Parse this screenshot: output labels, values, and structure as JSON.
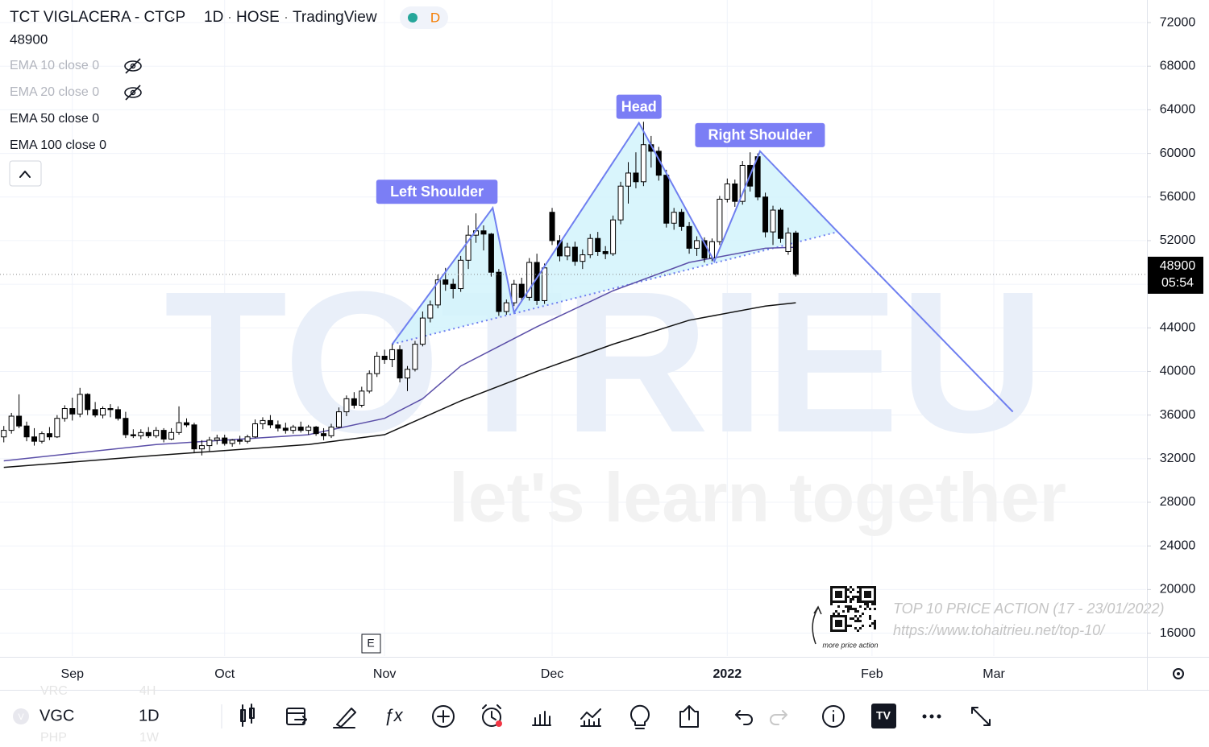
{
  "header": {
    "symbol_name": "TCT VIGLACERA - CTCP",
    "interval": "1D",
    "exchange": "HOSE",
    "source": "TradingView",
    "badge": "D"
  },
  "chart_data": {
    "type": "candlestick",
    "xlim": [
      -0.5,
      150
    ],
    "ylim": [
      13900,
      74070
    ],
    "xticks": [
      {
        "value": 9,
        "label": "Sep"
      },
      {
        "value": 29,
        "label": "Oct"
      },
      {
        "value": 50,
        "label": "Nov"
      },
      {
        "value": 72,
        "label": "Dec"
      },
      {
        "value": 95,
        "label": "2022"
      },
      {
        "value": 114,
        "label": "Feb"
      },
      {
        "value": 130,
        "label": "Mar"
      }
    ],
    "yticks": [
      16000,
      20000,
      24000,
      28000,
      32000,
      36000,
      40000,
      44000,
      48000,
      52000,
      56000,
      60000,
      64000,
      68000,
      72000
    ],
    "grid": true,
    "last_price": 48900,
    "countdown": "05:54",
    "ohlc": [
      [
        34000,
        35000,
        33500,
        34600
      ],
      [
        34600,
        36200,
        34300,
        35900
      ],
      [
        35900,
        37900,
        34800,
        35000
      ],
      [
        35000,
        35400,
        33600,
        34000
      ],
      [
        34000,
        34800,
        33200,
        33600
      ],
      [
        33600,
        34500,
        33400,
        34300
      ],
      [
        34300,
        34900,
        33700,
        34000
      ],
      [
        34000,
        36000,
        33900,
        35700
      ],
      [
        35700,
        36900,
        35400,
        36600
      ],
      [
        36600,
        37600,
        35500,
        36100
      ],
      [
        36100,
        38500,
        35800,
        37900
      ],
      [
        37900,
        38000,
        36000,
        36500
      ],
      [
        36500,
        37200,
        35800,
        36000
      ],
      [
        36000,
        36800,
        35700,
        36600
      ],
      [
        36600,
        37000,
        35800,
        36500
      ],
      [
        36500,
        36800,
        35500,
        35700
      ],
      [
        35700,
        36300,
        33900,
        34200
      ],
      [
        34200,
        34700,
        33900,
        34100
      ],
      [
        34100,
        34700,
        33800,
        34400
      ],
      [
        34400,
        34900,
        33900,
        34100
      ],
      [
        34100,
        34900,
        33900,
        34600
      ],
      [
        34600,
        34800,
        33500,
        33800
      ],
      [
        33800,
        34800,
        33700,
        34400
      ],
      [
        34400,
        36800,
        34200,
        35300
      ],
      [
        35300,
        35700,
        34900,
        35100
      ],
      [
        35100,
        35300,
        32500,
        32900
      ],
      [
        32900,
        33700,
        32300,
        33200
      ],
      [
        33200,
        34000,
        32700,
        33700
      ],
      [
        33700,
        34200,
        33300,
        33900
      ],
      [
        33900,
        34200,
        33200,
        33400
      ],
      [
        33400,
        33800,
        33100,
        33700
      ],
      [
        33700,
        34100,
        33300,
        33600
      ],
      [
        33600,
        34200,
        33400,
        34000
      ],
      [
        34000,
        35600,
        33900,
        35200
      ],
      [
        35200,
        35800,
        34700,
        35500
      ],
      [
        35500,
        36000,
        34800,
        35100
      ],
      [
        35100,
        35500,
        34500,
        34800
      ],
      [
        34800,
        35300,
        34300,
        34600
      ],
      [
        34600,
        35100,
        34300,
        34900
      ],
      [
        34900,
        35400,
        34400,
        34600
      ],
      [
        34600,
        35100,
        34200,
        34900
      ],
      [
        34900,
        35000,
        34100,
        34300
      ],
      [
        34300,
        34800,
        33700,
        34100
      ],
      [
        34100,
        35200,
        33900,
        34900
      ],
      [
        34900,
        36700,
        34800,
        36300
      ],
      [
        36300,
        37800,
        35900,
        37500
      ],
      [
        37500,
        38100,
        36600,
        36900
      ],
      [
        36900,
        38600,
        36700,
        38200
      ],
      [
        38200,
        40100,
        38000,
        39800
      ],
      [
        39800,
        41800,
        39500,
        41400
      ],
      [
        41400,
        42000,
        40700,
        41100
      ],
      [
        41100,
        42600,
        40400,
        42000
      ],
      [
        42000,
        42400,
        39000,
        39400
      ],
      [
        39400,
        40500,
        38200,
        40200
      ],
      [
        40200,
        42800,
        40000,
        42500
      ],
      [
        42500,
        45500,
        42300,
        44900
      ],
      [
        44900,
        46500,
        44500,
        46100
      ],
      [
        46100,
        48900,
        45800,
        48400
      ],
      [
        48400,
        49500,
        47400,
        48000
      ],
      [
        48000,
        48500,
        46700,
        47600
      ],
      [
        47600,
        50600,
        47300,
        50200
      ],
      [
        50200,
        53400,
        49400,
        52500
      ],
      [
        52500,
        54500,
        51800,
        52900
      ],
      [
        52900,
        53400,
        51100,
        52600
      ],
      [
        52600,
        52700,
        48700,
        49100
      ],
      [
        49100,
        49400,
        45100,
        45500
      ],
      [
        45500,
        46600,
        45200,
        46300
      ],
      [
        46300,
        48400,
        46000,
        48000
      ],
      [
        48000,
        48600,
        46400,
        46800
      ],
      [
        46800,
        50400,
        46500,
        50000
      ],
      [
        50000,
        50800,
        46100,
        46500
      ],
      [
        46500,
        49900,
        46200,
        49500
      ],
      [
        54600,
        55000,
        51600,
        52000
      ],
      [
        52000,
        52500,
        50100,
        50600
      ],
      [
        50600,
        51800,
        50200,
        51400
      ],
      [
        51400,
        51900,
        49700,
        50100
      ],
      [
        50100,
        51200,
        49400,
        50700
      ],
      [
        50700,
        52600,
        50400,
        52200
      ],
      [
        52200,
        52800,
        50600,
        51000
      ],
      [
        51000,
        51500,
        50300,
        50800
      ],
      [
        50800,
        54300,
        50600,
        53900
      ],
      [
        53900,
        57400,
        53500,
        57000
      ],
      [
        57000,
        59200,
        55400,
        58200
      ],
      [
        58200,
        60100,
        56800,
        57400
      ],
      [
        57400,
        62900,
        57000,
        60800
      ],
      [
        60800,
        61600,
        58700,
        60200
      ],
      [
        60200,
        60600,
        57500,
        58000
      ],
      [
        58000,
        58500,
        53200,
        53600
      ],
      [
        53600,
        55000,
        53000,
        54600
      ],
      [
        54600,
        54900,
        52900,
        53300
      ],
      [
        53300,
        53700,
        50800,
        51300
      ],
      [
        51300,
        52400,
        50600,
        52000
      ],
      [
        52000,
        52300,
        50000,
        50400
      ],
      [
        50400,
        52200,
        50100,
        51900
      ],
      [
        51900,
        56100,
        51600,
        55800
      ],
      [
        55800,
        57700,
        55500,
        57200
      ],
      [
        57200,
        57600,
        55100,
        55600
      ],
      [
        55600,
        59300,
        55300,
        58900
      ],
      [
        58900,
        60100,
        56500,
        57000
      ],
      [
        59700,
        60000,
        55700,
        56000
      ],
      [
        56000,
        56400,
        52300,
        52800
      ],
      [
        52800,
        55200,
        51600,
        54800
      ],
      [
        54800,
        55000,
        51800,
        52200
      ],
      [
        51000,
        53200,
        50700,
        52700
      ],
      [
        52700,
        52900,
        48700,
        48900
      ]
    ],
    "indicators": [
      {
        "name": "EMA 10 close 0",
        "visible": false
      },
      {
        "name": "EMA 20 close 0",
        "visible": false
      },
      {
        "name": "EMA 50 close 0",
        "visible": true,
        "color": "#5b4fa8",
        "x": [
          0,
          20,
          40,
          50,
          55,
          60,
          70,
          80,
          90,
          100,
          104
        ],
        "values": [
          31800,
          33300,
          34200,
          35700,
          37500,
          40500,
          44100,
          47400,
          50000,
          51300,
          51400
        ]
      },
      {
        "name": "EMA 100 close 0",
        "visible": true,
        "color": "#111111",
        "x": [
          0,
          20,
          40,
          50,
          60,
          70,
          80,
          90,
          100,
          104
        ],
        "values": [
          31200,
          32300,
          33300,
          34200,
          37300,
          40000,
          42500,
          44700,
          46000,
          46300
        ]
      }
    ],
    "pattern": {
      "color": "#6f7ff0",
      "fill": "#d2f3fb",
      "x": [
        51,
        64.2,
        67,
        83.4,
        93.3,
        99.3,
        109.5,
        132.5
      ],
      "values": [
        42500,
        55000,
        45400,
        62800,
        50100,
        60200,
        52800,
        36300
      ],
      "neckline_x": [
        51,
        109.5
      ],
      "neckline_values": [
        42500,
        52800
      ],
      "labels": [
        "Left Shoulder",
        "Head",
        "Right Shoulder"
      ]
    },
    "earnings_marker": "E"
  },
  "watermark": {
    "logo": "TOTRIEU",
    "slogan": "let's learn together",
    "qr_caption": "more price action",
    "promo_title": "TOP 10 PRICE ACTION (17 - 23/01/2022)",
    "promo_url": "https://www.tohaitrieu.net/top-10/"
  },
  "toolbar": {
    "symbol_icon": "V",
    "symbol": "VGC",
    "interval": "1D",
    "prev_symbol": "VRC",
    "prev_interval": "4H",
    "next_symbol": "PHP",
    "next_interval": "1W"
  }
}
